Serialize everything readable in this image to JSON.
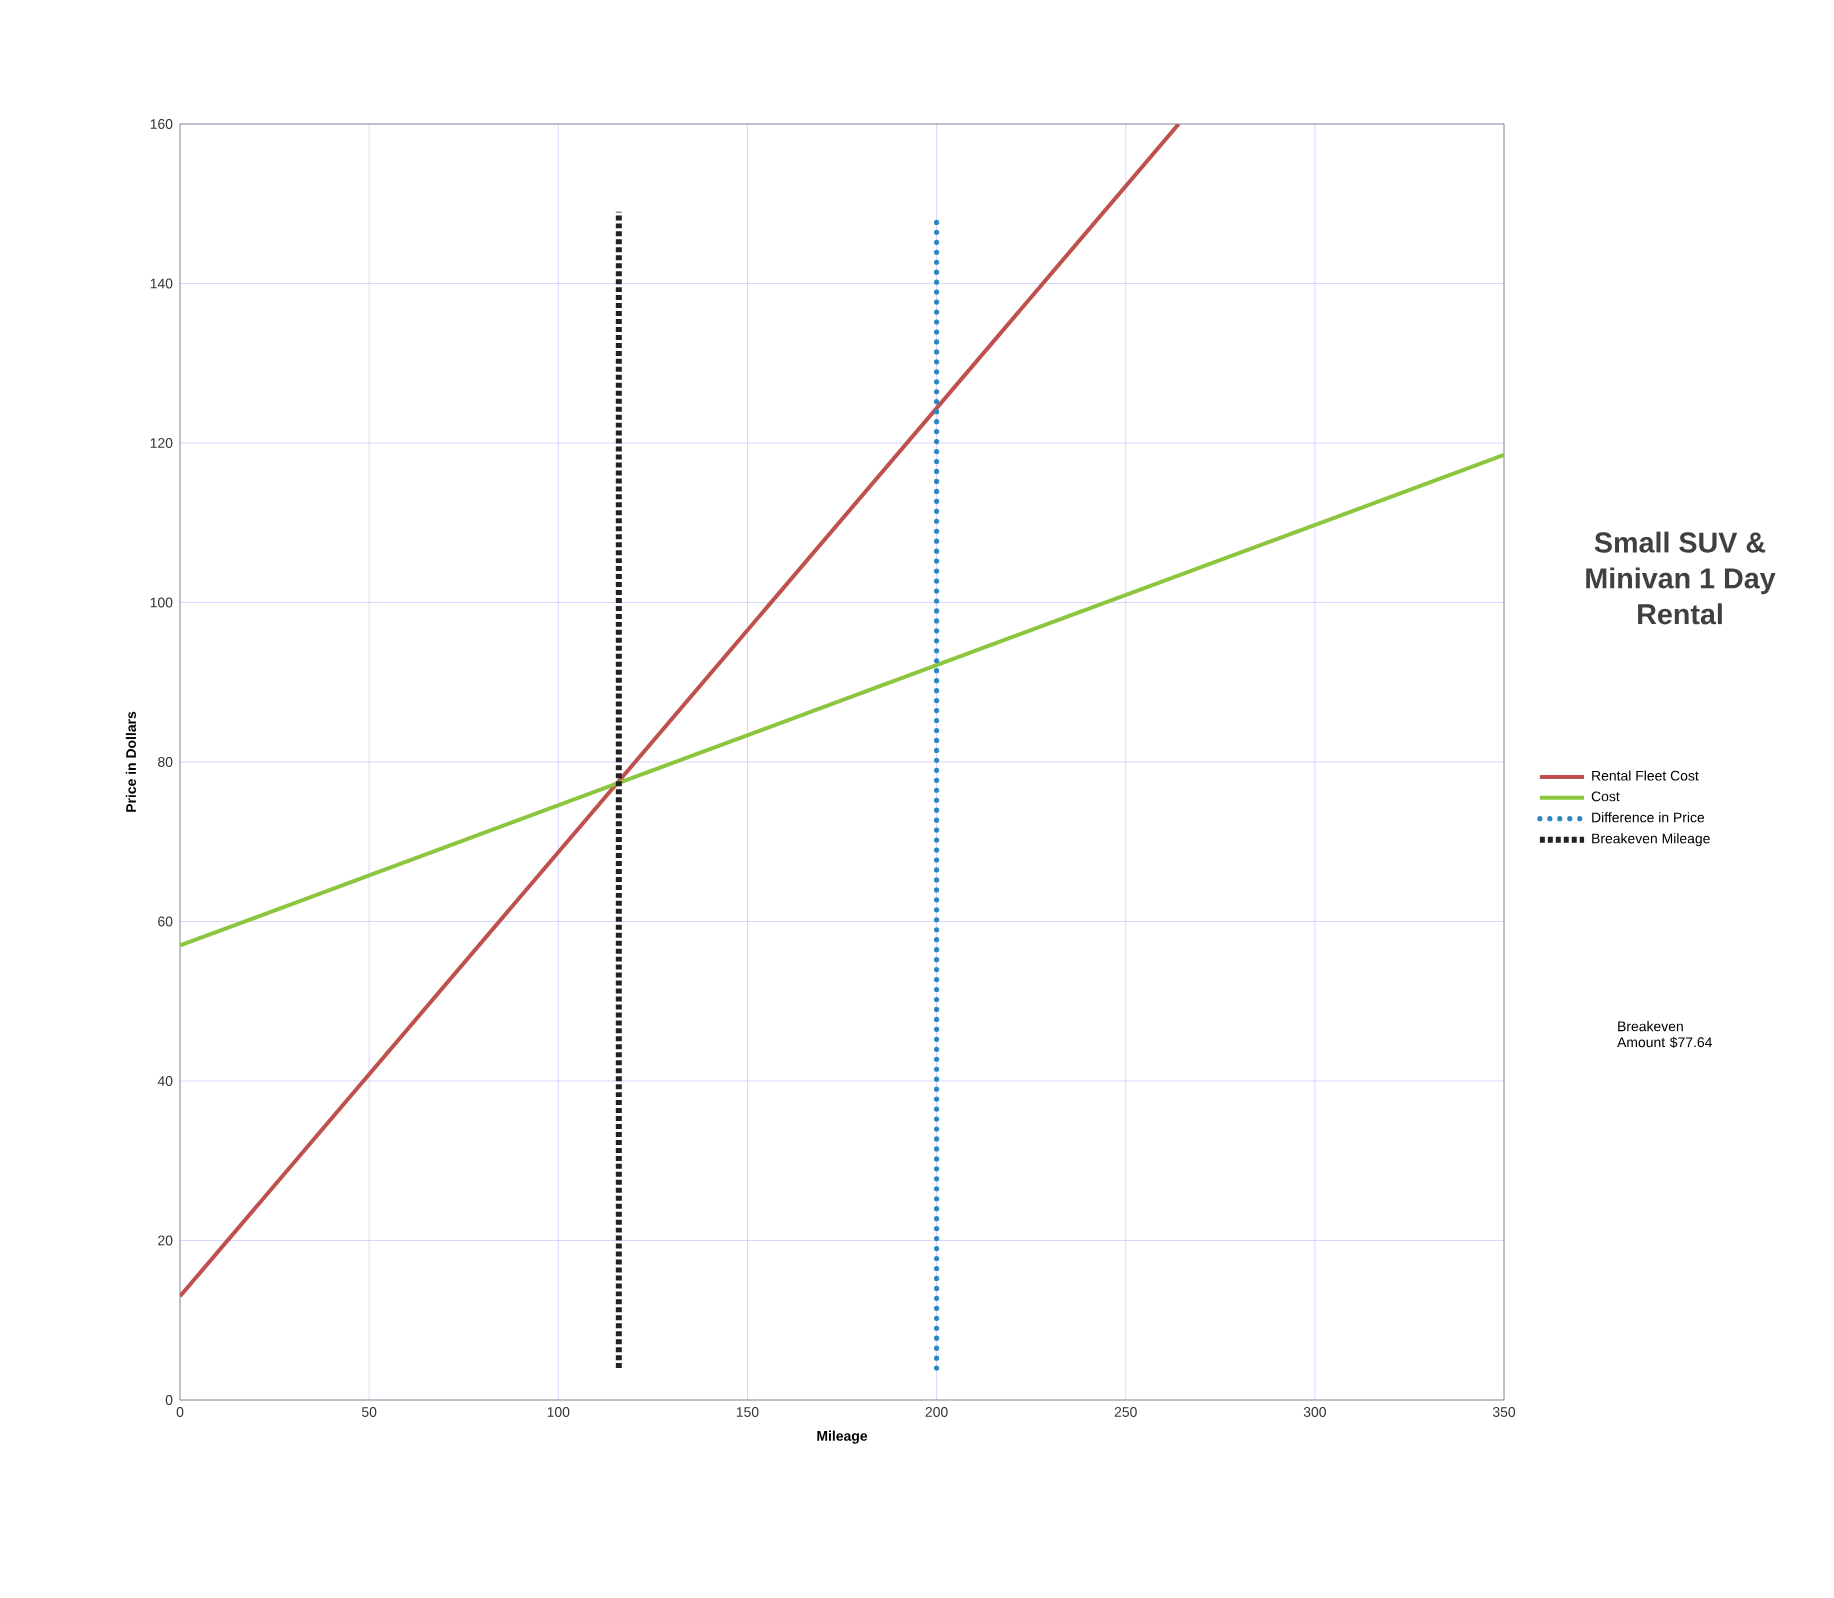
{
  "chart_data": {
    "type": "line",
    "title": "Small SUV & Minivan 1 Day Rental",
    "xlabel": "Mileage",
    "ylabel": "Price in Dollars",
    "xlim": [
      0,
      350
    ],
    "ylim": [
      0,
      160
    ],
    "xticks": [
      0,
      50,
      100,
      150,
      200,
      250,
      300,
      350
    ],
    "yticks": [
      0,
      20,
      40,
      60,
      80,
      100,
      120,
      140,
      160
    ],
    "grid": true,
    "legend": "right",
    "marker": "none",
    "series": [
      {
        "name": "Rental Fleet Cost",
        "color": "#c0504d",
        "x": [
          0,
          264
        ],
        "values": [
          13,
          160
        ],
        "line_style": "solid"
      },
      {
        "name": "Cost",
        "color": "#8cc63f",
        "x": [
          0,
          350
        ],
        "values": [
          57,
          118.5
        ],
        "line_style": "solid"
      },
      {
        "name": "Difference in Price",
        "color": "#2e86c1",
        "x": [
          200,
          200
        ],
        "values": [
          4,
          148
        ],
        "line_style": "dotted"
      },
      {
        "name": "Breakeven Mileage",
        "color": "#222222",
        "x": [
          116,
          116
        ],
        "values": [
          4,
          149
        ],
        "line_style": "dashed"
      }
    ],
    "annotations": [
      "Breakeven Amount $77.64"
    ]
  }
}
